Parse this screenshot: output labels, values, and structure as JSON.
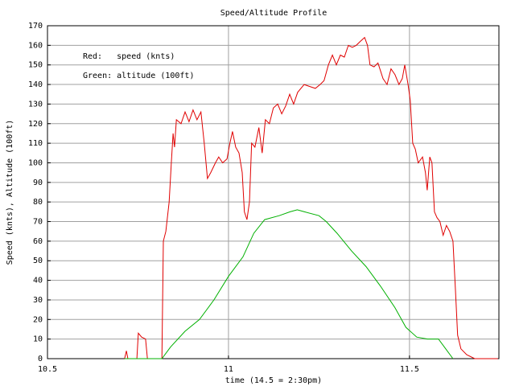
{
  "chart_data": {
    "type": "line",
    "title": "Speed/Altitude Profile",
    "x_label": "time (14.5 = 2:30pm)",
    "y_label": "Speed (knts), Altitude (100ft)",
    "annotations": [
      "Red:   speed (knts)",
      "Green: altitude (100ft)"
    ],
    "xlim": [
      10.5,
      11.747
    ],
    "xticks": [
      10.5,
      11,
      11.5
    ],
    "ylim": [
      0,
      170
    ],
    "yticks": [
      0,
      10,
      20,
      30,
      40,
      50,
      60,
      70,
      80,
      90,
      100,
      110,
      120,
      130,
      140,
      150,
      160,
      170
    ],
    "grid": true,
    "series": [
      {
        "color": "#e00000",
        "x": [
          10.713,
          10.718,
          10.722,
          10.747,
          10.751,
          10.76,
          10.771,
          10.776,
          10.816,
          10.82,
          10.827,
          10.836,
          10.842,
          10.847,
          10.851,
          10.856,
          10.869,
          10.88,
          10.891,
          10.902,
          10.913,
          10.924,
          10.933,
          10.942,
          10.951,
          10.964,
          10.973,
          10.984,
          10.996,
          11.004,
          11.011,
          11.02,
          11.029,
          11.038,
          11.044,
          11.051,
          11.058,
          11.064,
          11.073,
          11.084,
          11.093,
          11.102,
          11.113,
          11.124,
          11.136,
          11.147,
          11.158,
          11.169,
          11.18,
          11.191,
          11.209,
          11.224,
          11.24,
          11.253,
          11.264,
          11.276,
          11.287,
          11.298,
          11.309,
          11.32,
          11.331,
          11.342,
          11.353,
          11.364,
          11.376,
          11.384,
          11.391,
          11.402,
          11.413,
          11.427,
          11.438,
          11.449,
          11.46,
          11.471,
          11.48,
          11.487,
          11.496,
          11.502,
          11.509,
          11.516,
          11.524,
          11.536,
          11.544,
          11.549,
          11.556,
          11.562,
          11.569,
          11.576,
          11.584,
          11.593,
          11.602,
          11.611,
          11.62,
          11.627,
          11.633,
          11.642,
          11.658,
          11.68,
          11.744
        ],
        "values": [
          0,
          4,
          0,
          0,
          13,
          11,
          10,
          0,
          0,
          60,
          65,
          80,
          100,
          115,
          108,
          122,
          120,
          126,
          121,
          127,
          122,
          126,
          110,
          92,
          95,
          100,
          103,
          100,
          102,
          110,
          116,
          108,
          105,
          95,
          75,
          71,
          80,
          110,
          108,
          118,
          105,
          122,
          120,
          128,
          130,
          125,
          129,
          135,
          130,
          136,
          140,
          139,
          138,
          140,
          142,
          150,
          155,
          150,
          155,
          154,
          160,
          159,
          160,
          162,
          164,
          160,
          150,
          149,
          151,
          143,
          140,
          148,
          145,
          140,
          143,
          150,
          140,
          132,
          110,
          107,
          100,
          103,
          95,
          86,
          103,
          100,
          75,
          72,
          70,
          63,
          68,
          65,
          60,
          35,
          12,
          5,
          2,
          0,
          0
        ]
      },
      {
        "color": "#00b000",
        "x": [
          10.713,
          10.816,
          10.84,
          10.88,
          10.92,
          10.96,
          11.0,
          11.04,
          11.07,
          11.1,
          11.14,
          11.17,
          11.19,
          11.21,
          11.25,
          11.27,
          11.3,
          11.34,
          11.38,
          11.42,
          11.46,
          11.49,
          11.52,
          11.55,
          11.58,
          11.6,
          11.62
        ],
        "values": [
          0,
          0,
          6,
          14,
          20,
          30,
          42,
          52,
          64,
          71,
          73,
          75,
          76,
          75,
          73,
          70,
          64,
          55,
          47,
          37,
          26,
          16,
          11,
          10,
          10,
          5,
          0
        ]
      }
    ]
  }
}
